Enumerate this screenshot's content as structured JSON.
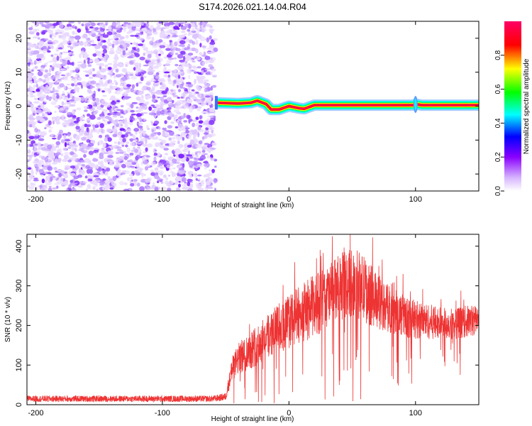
{
  "title": "S174.2026.021.14.04.R04",
  "chart_data": [
    {
      "type": "heatmap",
      "name": "spectrogram",
      "xlabel": "Height of straight line (km)",
      "ylabel": "Frequency (Hz)",
      "xlim": [
        -207,
        150
      ],
      "ylim": [
        -25,
        25
      ],
      "xticks": [
        -200,
        -100,
        0,
        100
      ],
      "yticks": [
        20,
        10,
        0,
        -10,
        -20
      ],
      "noise_region_x": [
        -207,
        -58
      ],
      "signal_region_x": [
        -58,
        150
      ],
      "signal_freq_track": [
        {
          "x": -58,
          "y": 1.0
        },
        {
          "x": -40,
          "y": 0.8
        },
        {
          "x": -30,
          "y": 1.0
        },
        {
          "x": -25,
          "y": 1.6
        },
        {
          "x": -18,
          "y": 0.6
        },
        {
          "x": -14,
          "y": -1.0
        },
        {
          "x": -8,
          "y": -1.0
        },
        {
          "x": 0,
          "y": 0.0
        },
        {
          "x": 8,
          "y": -0.6
        },
        {
          "x": 12,
          "y": -0.8
        },
        {
          "x": 20,
          "y": 0.3
        },
        {
          "x": 60,
          "y": 0.3
        },
        {
          "x": 98,
          "y": 0.3
        },
        {
          "x": 100,
          "y": 0.6
        },
        {
          "x": 105,
          "y": 0.3
        },
        {
          "x": 150,
          "y": 0.3
        }
      ],
      "colorbar": {
        "label": "Normalized spectral amplitude",
        "range": [
          0,
          1
        ],
        "ticks": [
          "0.0",
          "0.2",
          "0.4",
          "0.6",
          "0.8"
        ],
        "colors": [
          "#ffffff",
          "#8a00ff",
          "#0000ff",
          "#00ffff",
          "#00ff00",
          "#ffff00",
          "#ff0000",
          "#ff0066"
        ]
      }
    },
    {
      "type": "line",
      "name": "snr",
      "xlabel": "Height of straight line (km)",
      "ylabel": "SNR (10 * v/v)",
      "xlim": [
        -207,
        150
      ],
      "ylim": [
        0,
        430
      ],
      "xticks": [
        -200,
        -100,
        0,
        100
      ],
      "yticks": [
        0,
        100,
        200,
        300,
        400
      ],
      "color": "#ee3333",
      "envelope": {
        "x": [
          -207,
          -60,
          -50,
          -45,
          -40,
          -30,
          -20,
          -10,
          0,
          10,
          20,
          30,
          40,
          50,
          60,
          70,
          80,
          90,
          100,
          110,
          120,
          130,
          140,
          150
        ],
        "mean": [
          15,
          15,
          20,
          90,
          115,
          140,
          165,
          190,
          210,
          230,
          250,
          270,
          295,
          310,
          290,
          260,
          240,
          225,
          215,
          210,
          205,
          205,
          210,
          215
        ],
        "amplitude": [
          8,
          8,
          10,
          30,
          40,
          50,
          55,
          60,
          70,
          75,
          80,
          80,
          85,
          90,
          85,
          70,
          60,
          55,
          50,
          45,
          40,
          40,
          40,
          40
        ]
      }
    }
  ]
}
